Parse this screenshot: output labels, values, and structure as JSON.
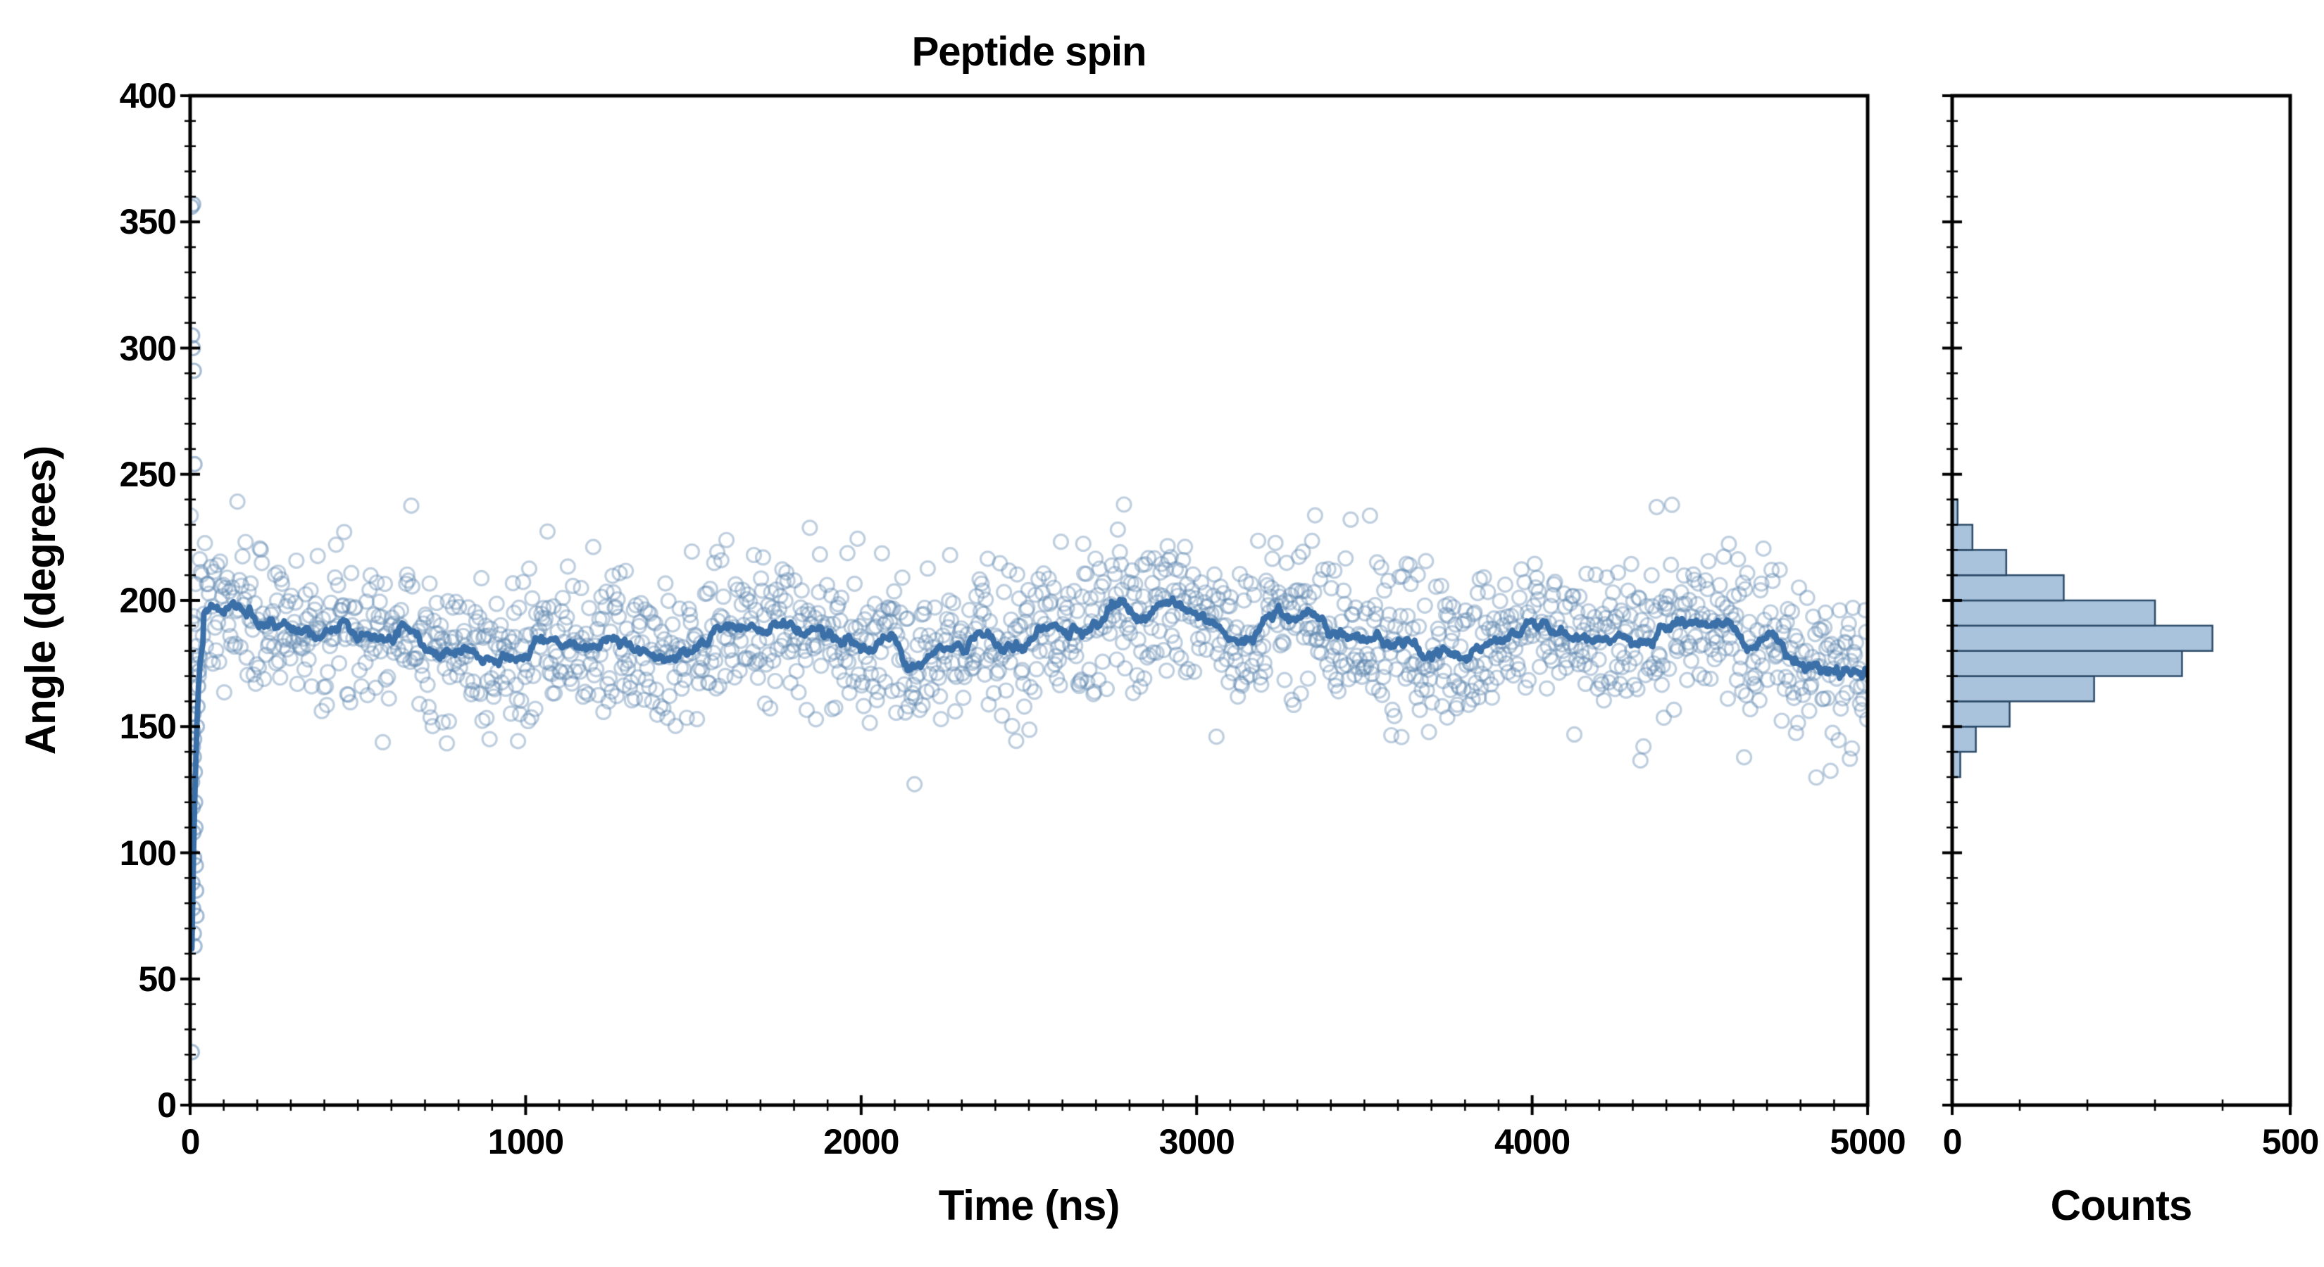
{
  "figure": {
    "title": "Peptide spin"
  },
  "style": {
    "background": "#ffffff",
    "spine_color": "#000000",
    "text_color": "#000000"
  },
  "chart_data": [
    {
      "type": "scatter",
      "panel": "main",
      "title": "Peptide spin",
      "xlabel": "Time (ns)",
      "ylabel": "Angle (degrees)",
      "xlim": [
        0,
        5000
      ],
      "ylim": [
        0,
        400
      ],
      "xticks": [
        0,
        1000,
        2000,
        3000,
        4000,
        5000
      ],
      "xtick_minor_step": 100,
      "yticks": [
        0,
        50,
        100,
        150,
        200,
        250,
        300,
        350,
        400
      ],
      "ytick_minor_step": 10,
      "grid": false,
      "legend": "none",
      "series": [
        {
          "name": "angle-samples",
          "kind": "scatter",
          "marker": "open-circle",
          "color": "#5e86b0",
          "alpha": 0.4,
          "marker_radius": 10,
          "n_points": 1650,
          "x_start": 0,
          "x_end": 5000,
          "y_mean": 186,
          "y_std": 15,
          "wander": [
            {
              "amp": 5,
              "period": 212,
              "phase": 0
            },
            {
              "amp": 4,
              "period": 537,
              "phase": 2
            },
            {
              "amp": 3,
              "period": 90,
              "phase": 1
            }
          ],
          "seed": 7
        },
        {
          "name": "equilibration-transient",
          "kind": "scatter",
          "marker": "open-circle",
          "color": "#5e86b0",
          "alpha": 0.55,
          "points": [
            [
              4,
              356
            ],
            [
              9,
              357
            ],
            [
              6,
              305
            ],
            [
              8,
              300
            ],
            [
              11,
              291
            ],
            [
              5,
              21
            ],
            [
              13,
              254
            ],
            [
              7,
              160
            ],
            [
              9,
              148
            ],
            [
              11,
              138
            ],
            [
              6,
              128
            ],
            [
              8,
              118
            ],
            [
              10,
              108
            ],
            [
              12,
              98
            ],
            [
              7,
              88
            ],
            [
              9,
              78
            ],
            [
              11,
              68
            ],
            [
              13,
              63
            ],
            [
              10,
              155
            ],
            [
              12,
              145
            ],
            [
              14,
              132
            ],
            [
              8,
              142
            ],
            [
              15,
              120
            ],
            [
              16,
              110
            ],
            [
              17,
              95
            ],
            [
              18,
              85
            ],
            [
              19,
              75
            ],
            [
              20,
              150
            ],
            [
              22,
              158
            ],
            [
              24,
              166
            ],
            [
              26,
              172
            ],
            [
              28,
              178
            ]
          ]
        },
        {
          "name": "running-mean",
          "kind": "line",
          "color": "#3a6fa8",
          "width": 8,
          "window": 25,
          "lead_in": [
            [
              5,
              62
            ],
            [
              10,
              100
            ],
            [
              15,
              128
            ],
            [
              20,
              150
            ],
            [
              25,
              166
            ],
            [
              30,
              176
            ],
            [
              38,
              183
            ]
          ]
        }
      ]
    },
    {
      "type": "bar",
      "panel": "histogram",
      "orientation": "horizontal",
      "xlabel": "Counts",
      "xlim": [
        0,
        500
      ],
      "xticks": [
        0,
        500
      ],
      "xtick_minor_step": 100,
      "ylim": [
        0,
        400
      ],
      "bin_start": 130,
      "bin_width": 10,
      "counts": [
        12,
        35,
        85,
        210,
        340,
        385,
        300,
        165,
        80,
        30,
        8
      ],
      "bar_fill": "#a9c3dc",
      "bar_edge": "#2b4a68"
    }
  ]
}
